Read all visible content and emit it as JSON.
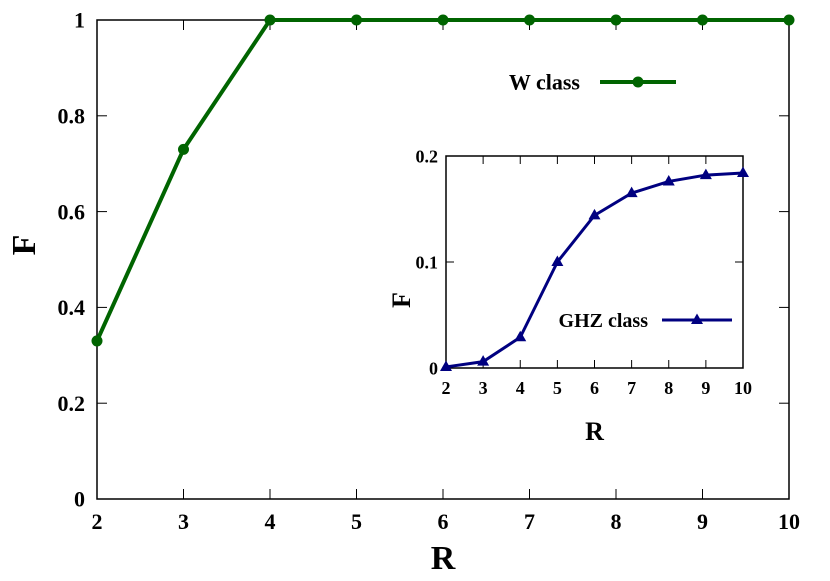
{
  "chart_data": [
    {
      "type": "line",
      "xlabel": "R",
      "ylabel": "F",
      "xlim": [
        2,
        10
      ],
      "ylim": [
        0,
        1
      ],
      "xticks": [
        "2",
        "3",
        "4",
        "5",
        "6",
        "7",
        "8",
        "9",
        "10"
      ],
      "yticks": [
        "0",
        "0.2",
        "0.4",
        "0.6",
        "0.8",
        "1"
      ],
      "grid": false,
      "legend_position": "top-right",
      "series": [
        {
          "name": "W class",
          "color": "#006400",
          "marker": "circle",
          "x": [
            2,
            3,
            4,
            5,
            6,
            7,
            8,
            9,
            10
          ],
          "y": [
            0.33,
            0.73,
            1,
            1,
            1,
            1,
            1,
            1,
            1
          ]
        }
      ]
    },
    {
      "type": "line",
      "inset": true,
      "xlabel": "R",
      "ylabel": "F",
      "xlim": [
        2,
        10
      ],
      "ylim": [
        0,
        0.2
      ],
      "xticks": [
        "2",
        "3",
        "4",
        "5",
        "6",
        "7",
        "8",
        "9",
        "10"
      ],
      "yticks": [
        "0",
        "0.1",
        "0.2"
      ],
      "grid": false,
      "legend_position": "center-right",
      "series": [
        {
          "name": "GHZ class",
          "color": "#000080",
          "marker": "triangle",
          "x": [
            2,
            3,
            4,
            5,
            6,
            7,
            8,
            9,
            10
          ],
          "y": [
            0.001,
            0.006,
            0.029,
            0.1,
            0.144,
            0.165,
            0.176,
            0.182,
            0.184
          ]
        }
      ]
    }
  ]
}
